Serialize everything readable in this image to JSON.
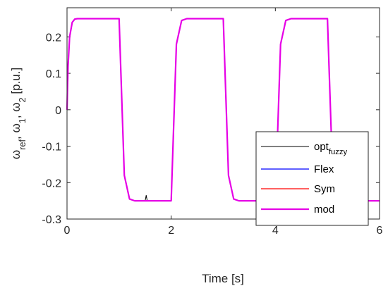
{
  "chart_data": {
    "type": "line",
    "title": "",
    "xlabel": "Time [s]",
    "ylabel": {
      "parts": [
        {
          "t": "ω"
        },
        {
          "t": "ref",
          "sub": true
        },
        {
          "t": ", ω"
        },
        {
          "t": "1",
          "sub": true
        },
        {
          "t": ", ω"
        },
        {
          "t": "2",
          "sub": true
        },
        {
          "t": " [p.u.]"
        }
      ]
    },
    "xlim": [
      0,
      6
    ],
    "ylim": [
      -0.3,
      0.28
    ],
    "xticks": [
      0,
      2,
      4,
      6
    ],
    "xtick_labels": [
      "0",
      "2",
      "4",
      "6"
    ],
    "yticks": [
      -0.3,
      -0.2,
      -0.1,
      0,
      0.1,
      0.2
    ],
    "ytick_labels": [
      "-0.3",
      "-0.2",
      "-0.1",
      "0",
      "0.1",
      "0.2"
    ],
    "grid": false,
    "legend_position": "bottom-right",
    "description_of_signal": "square-wave speed response switching between +0.25 and -0.25 p.u. every 1 s with fast exponential transitions",
    "series": [
      {
        "name_parts": [
          {
            "t": "opt"
          },
          {
            "t": "fuzzy",
            "sub": true
          }
        ],
        "color": "#000000",
        "x": [
          0,
          0.02,
          0.05,
          0.1,
          0.15,
          0.2,
          0.3,
          1.0,
          1.03,
          1.1,
          1.2,
          1.3,
          1.5,
          1.52,
          1.54,
          1.56,
          2.0,
          2.03,
          2.1,
          2.2,
          2.3,
          3.0,
          3.03,
          3.1,
          3.2,
          3.3,
          4.0,
          4.03,
          4.1,
          4.2,
          4.3,
          5.0,
          5.03,
          5.1,
          5.2,
          5.3,
          6.0
        ],
        "y": [
          0,
          0.12,
          0.2,
          0.24,
          0.249,
          0.25,
          0.25,
          0.25,
          0.12,
          -0.18,
          -0.245,
          -0.25,
          -0.25,
          -0.235,
          -0.25,
          -0.25,
          -0.25,
          -0.12,
          0.18,
          0.245,
          0.25,
          0.25,
          0.12,
          -0.18,
          -0.245,
          -0.25,
          -0.25,
          -0.12,
          0.18,
          0.245,
          0.25,
          0.25,
          0.12,
          -0.18,
          -0.245,
          -0.25,
          -0.25
        ]
      },
      {
        "name": "Flex",
        "color": "#0000ff",
        "x": [
          0,
          0.02,
          0.05,
          0.1,
          0.15,
          0.2,
          0.3,
          1.0,
          1.03,
          1.1,
          1.2,
          1.3,
          2.0,
          2.03,
          2.1,
          2.2,
          2.3,
          3.0,
          3.03,
          3.1,
          3.2,
          3.3,
          4.0,
          4.03,
          4.1,
          4.2,
          4.3,
          5.0,
          5.03,
          5.1,
          5.2,
          5.3,
          6.0
        ],
        "y": [
          0,
          0.12,
          0.2,
          0.24,
          0.249,
          0.25,
          0.25,
          0.25,
          0.12,
          -0.18,
          -0.245,
          -0.25,
          -0.25,
          -0.12,
          0.18,
          0.245,
          0.25,
          0.25,
          0.12,
          -0.18,
          -0.245,
          -0.25,
          -0.25,
          -0.12,
          0.18,
          0.245,
          0.25,
          0.25,
          0.12,
          -0.18,
          -0.245,
          -0.25,
          -0.25
        ]
      },
      {
        "name": "Sym",
        "color": "#ff0000",
        "x": [
          0,
          0.02,
          0.05,
          0.1,
          0.15,
          0.2,
          0.3,
          1.0,
          1.03,
          1.1,
          1.2,
          1.3,
          2.0,
          2.03,
          2.1,
          2.2,
          2.3,
          3.0,
          3.03,
          3.1,
          3.2,
          3.3,
          4.0,
          4.03,
          4.1,
          4.2,
          4.3,
          5.0,
          5.03,
          5.1,
          5.2,
          5.3,
          6.0
        ],
        "y": [
          0,
          0.12,
          0.2,
          0.24,
          0.249,
          0.25,
          0.25,
          0.25,
          0.12,
          -0.18,
          -0.245,
          -0.25,
          -0.25,
          -0.12,
          0.18,
          0.245,
          0.25,
          0.25,
          0.12,
          -0.18,
          -0.245,
          -0.25,
          -0.25,
          -0.12,
          0.18,
          0.245,
          0.25,
          0.25,
          0.12,
          -0.18,
          -0.245,
          -0.25,
          -0.25
        ]
      },
      {
        "name": "mod",
        "color": "#e600e6",
        "x": [
          0,
          0.02,
          0.05,
          0.1,
          0.15,
          0.2,
          0.3,
          1.0,
          1.03,
          1.1,
          1.2,
          1.3,
          2.0,
          2.03,
          2.1,
          2.2,
          2.3,
          3.0,
          3.03,
          3.1,
          3.2,
          3.3,
          4.0,
          4.03,
          4.1,
          4.2,
          4.3,
          5.0,
          5.03,
          5.1,
          5.2,
          5.3,
          6.0
        ],
        "y": [
          0,
          0.12,
          0.2,
          0.24,
          0.249,
          0.25,
          0.25,
          0.25,
          0.12,
          -0.18,
          -0.245,
          -0.25,
          -0.25,
          -0.12,
          0.18,
          0.245,
          0.25,
          0.25,
          0.12,
          -0.18,
          -0.245,
          -0.25,
          -0.25,
          -0.12,
          0.18,
          0.245,
          0.25,
          0.25,
          0.12,
          -0.18,
          -0.245,
          -0.25,
          -0.25
        ]
      }
    ]
  }
}
